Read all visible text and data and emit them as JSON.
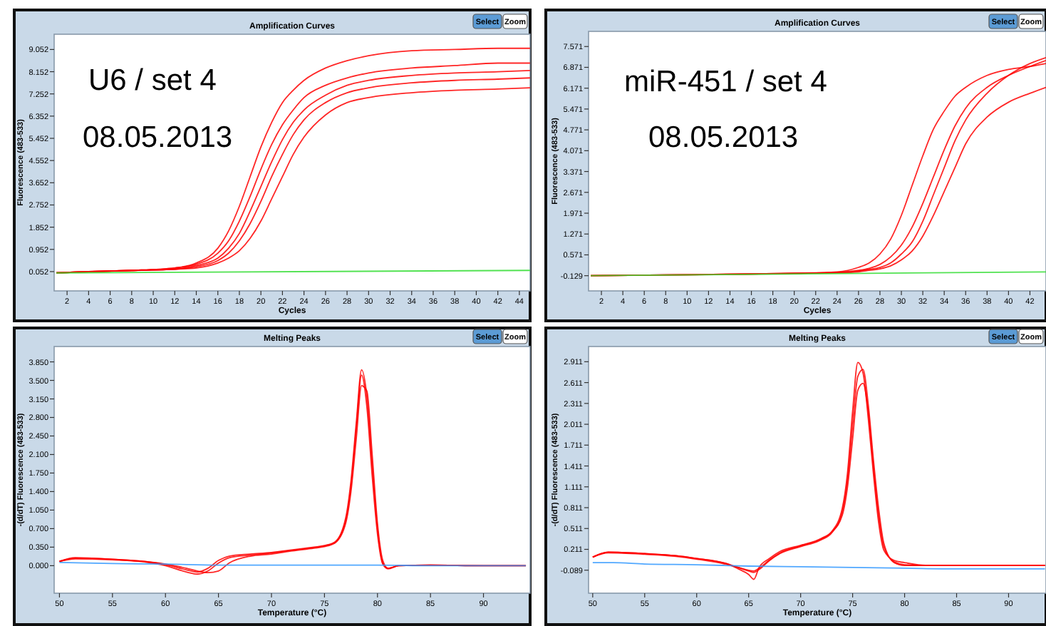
{
  "chart_data": [
    {
      "type": "line",
      "title": "Amplification Curves",
      "xlabel": "Cycles",
      "ylabel": "Fluorescence (483-533)",
      "annotations": [
        "U6  / set 4",
        "08.05.2013",
        "Select",
        "Zoom"
      ],
      "xlim": [
        0.8,
        45
      ],
      "xticks": [
        2,
        4,
        6,
        8,
        10,
        12,
        14,
        16,
        18,
        20,
        22,
        24,
        26,
        28,
        30,
        32,
        34,
        36,
        38,
        40,
        42,
        44
      ],
      "ylim": [
        -0.73,
        9.67
      ],
      "yticks": [
        {
          "value": 0.052,
          "label": "0.052"
        },
        {
          "value": 0.952,
          "label": "0.952"
        },
        {
          "value": 1.852,
          "label": "1.852"
        },
        {
          "value": 2.752,
          "label": "2.752"
        },
        {
          "value": 3.652,
          "label": "3.652"
        },
        {
          "value": 4.552,
          "label": "4.552"
        },
        {
          "value": 5.452,
          "label": "5.452"
        },
        {
          "value": 6.352,
          "label": "6.352"
        },
        {
          "value": 7.252,
          "label": "7.252"
        },
        {
          "value": 8.152,
          "label": "8.152"
        },
        {
          "value": 9.052,
          "label": "9.052"
        }
      ],
      "grid": false,
      "x": [
        1,
        4,
        8,
        12,
        14,
        16,
        17,
        18,
        19,
        20,
        21,
        22,
        23,
        24,
        26,
        28,
        30,
        34,
        38,
        42,
        45
      ],
      "series": [
        {
          "color": "#ff0000",
          "values": [
            0.0,
            0.05,
            0.1,
            0.2,
            0.4,
            1.0,
            1.7,
            2.7,
            3.9,
            5.1,
            6.1,
            6.9,
            7.4,
            7.8,
            8.3,
            8.6,
            8.8,
            9.0,
            9.05,
            9.1,
            9.1
          ]
        },
        {
          "color": "#ff0000",
          "values": [
            0.0,
            0.05,
            0.1,
            0.15,
            0.3,
            0.6,
            1.0,
            1.6,
            2.5,
            3.5,
            4.5,
            5.4,
            6.1,
            6.6,
            7.2,
            7.6,
            7.8,
            8.0,
            8.1,
            8.15,
            8.2
          ]
        },
        {
          "color": "#ff0000",
          "values": [
            0.0,
            0.05,
            0.1,
            0.15,
            0.2,
            0.4,
            0.6,
            0.9,
            1.4,
            2.1,
            3.0,
            3.9,
            4.8,
            5.5,
            6.4,
            6.9,
            7.1,
            7.3,
            7.4,
            7.45,
            7.5
          ]
        },
        {
          "color": "#ff0000",
          "values": [
            0.0,
            0.05,
            0.1,
            0.15,
            0.25,
            0.5,
            0.8,
            1.3,
            2.0,
            2.9,
            3.9,
            4.8,
            5.6,
            6.2,
            6.9,
            7.3,
            7.5,
            7.7,
            7.8,
            7.85,
            7.9
          ]
        },
        {
          "color": "#ff0000",
          "values": [
            0.0,
            0.05,
            0.1,
            0.2,
            0.35,
            0.8,
            1.3,
            2.1,
            3.1,
            4.2,
            5.2,
            6.0,
            6.6,
            7.1,
            7.6,
            7.9,
            8.1,
            8.3,
            8.4,
            8.5,
            8.5
          ]
        },
        {
          "color": "#33dd33",
          "x": [
            1,
            45
          ],
          "values": [
            0.0,
            0.1
          ]
        }
      ]
    },
    {
      "type": "line",
      "title": "Amplification Curves",
      "xlabel": "Cycles",
      "ylabel": "Fluorescence (483-533)",
      "annotations": [
        "miR-451 / set 4",
        "08.05.2013",
        "Select",
        "Zoom"
      ],
      "xlim": [
        0.8,
        43.5
      ],
      "xticks": [
        2,
        4,
        6,
        8,
        10,
        12,
        14,
        16,
        18,
        20,
        22,
        24,
        26,
        28,
        30,
        32,
        34,
        36,
        38,
        40,
        42
      ],
      "ylim": [
        -0.64,
        8.08
      ],
      "yticks": [
        {
          "value": -0.129,
          "label": "-0.129"
        },
        {
          "value": 0.571,
          "label": "0.571"
        },
        {
          "value": 1.271,
          "label": "1.271"
        },
        {
          "value": 1.971,
          "label": "1.971"
        },
        {
          "value": 2.671,
          "label": "2.671"
        },
        {
          "value": 3.371,
          "label": "3.371"
        },
        {
          "value": 4.071,
          "label": "4.071"
        },
        {
          "value": 4.771,
          "label": "4.771"
        },
        {
          "value": 5.471,
          "label": "5.471"
        },
        {
          "value": 6.171,
          "label": "6.171"
        },
        {
          "value": 6.871,
          "label": "6.871"
        },
        {
          "value": 7.571,
          "label": "7.571"
        }
      ],
      "grid": false,
      "x": [
        1,
        10,
        20,
        24,
        26,
        27,
        28,
        29,
        30,
        31,
        32,
        33,
        34,
        35,
        36,
        38,
        40,
        42,
        43.5
      ],
      "series": [
        {
          "color": "#ff0000",
          "values": [
            -0.13,
            -0.1,
            -0.05,
            0.0,
            0.15,
            0.3,
            0.6,
            1.1,
            1.9,
            2.9,
            3.9,
            4.8,
            5.4,
            5.9,
            6.2,
            6.6,
            6.8,
            6.9,
            7.0
          ]
        },
        {
          "color": "#ff0000",
          "values": [
            -0.13,
            -0.1,
            -0.05,
            -0.02,
            0.05,
            0.12,
            0.25,
            0.5,
            0.9,
            1.5,
            2.3,
            3.2,
            4.1,
            4.9,
            5.5,
            6.2,
            6.6,
            6.9,
            7.1
          ]
        },
        {
          "color": "#ff0000",
          "values": [
            -0.13,
            -0.1,
            -0.05,
            -0.03,
            0.0,
            0.05,
            0.1,
            0.2,
            0.4,
            0.7,
            1.2,
            1.9,
            2.7,
            3.5,
            4.3,
            5.2,
            5.7,
            6.0,
            6.2
          ]
        },
        {
          "color": "#ff0000",
          "values": [
            -0.13,
            -0.1,
            -0.05,
            -0.02,
            0.03,
            0.08,
            0.15,
            0.3,
            0.6,
            1.0,
            1.7,
            2.6,
            3.5,
            4.4,
            5.1,
            6.0,
            6.6,
            7.0,
            7.2
          ]
        },
        {
          "color": "#33dd33",
          "x": [
            1,
            43.5
          ],
          "values": [
            -0.13,
            0.0
          ]
        }
      ]
    },
    {
      "type": "line",
      "title": "Melting Peaks",
      "xlabel": "Temperature (°C)",
      "ylabel": "-(d/dT) Fluorescence (483-533)",
      "annotations": [
        "Select",
        "Zoom"
      ],
      "xlim": [
        49.5,
        94.4
      ],
      "xticks": [
        50,
        55,
        60,
        65,
        70,
        75,
        80,
        85,
        90
      ],
      "ylim": [
        -0.52,
        4.14
      ],
      "yticks": [
        {
          "value": 0,
          "label": "0.000"
        },
        {
          "value": 0.35,
          "label": "0.350"
        },
        {
          "value": 0.7,
          "label": "0.700"
        },
        {
          "value": 1.05,
          "label": "1.050"
        },
        {
          "value": 1.4,
          "label": "1.400"
        },
        {
          "value": 1.75,
          "label": "1.750"
        },
        {
          "value": 2.1,
          "label": "2.100"
        },
        {
          "value": 2.45,
          "label": "2.450"
        },
        {
          "value": 2.8,
          "label": "2.800"
        },
        {
          "value": 3.15,
          "label": "3.150"
        },
        {
          "value": 3.5,
          "label": "3.500"
        },
        {
          "value": 3.85,
          "label": "3.850"
        }
      ],
      "grid": false,
      "x": [
        50,
        51.5,
        55,
        58,
        60,
        62,
        63,
        64,
        65,
        66,
        68,
        70,
        72,
        74,
        75,
        76,
        77,
        77.5,
        78,
        78.5,
        79,
        79.5,
        80,
        80.5,
        81,
        82,
        85,
        90,
        94
      ],
      "series": [
        {
          "color": "#ff0000",
          "values": [
            0.08,
            0.15,
            0.12,
            0.08,
            0.02,
            -0.08,
            -0.12,
            -0.05,
            0.1,
            0.18,
            0.22,
            0.25,
            0.3,
            0.35,
            0.38,
            0.45,
            0.9,
            1.6,
            2.7,
            3.7,
            3.2,
            1.9,
            0.7,
            0.05,
            -0.05,
            0.0,
            0.01,
            0.0,
            0.0
          ]
        },
        {
          "color": "#ff0000",
          "values": [
            0.08,
            0.14,
            0.12,
            0.08,
            0.03,
            -0.05,
            -0.1,
            -0.13,
            -0.1,
            0.05,
            0.18,
            0.22,
            0.28,
            0.33,
            0.36,
            0.43,
            0.8,
            1.4,
            2.4,
            3.4,
            3.3,
            2.1,
            0.8,
            0.1,
            -0.05,
            0.0,
            0.01,
            0.0,
            0.0
          ]
        },
        {
          "color": "#ff0000",
          "values": [
            0.08,
            0.13,
            0.11,
            0.07,
            0.0,
            -0.12,
            -0.16,
            -0.1,
            0.05,
            0.15,
            0.2,
            0.24,
            0.29,
            0.34,
            0.37,
            0.44,
            0.85,
            1.5,
            2.6,
            3.6,
            3.0,
            1.7,
            0.6,
            0.03,
            -0.06,
            0.0,
            0.01,
            0.0,
            0.0
          ]
        },
        {
          "color": "#3399ff",
          "x": [
            50,
            55,
            60,
            65,
            70,
            75,
            80,
            85,
            90,
            94
          ],
          "values": [
            0.06,
            0.04,
            0.03,
            0.01,
            0.01,
            0.01,
            0.01,
            0.0,
            0.0,
            0.0
          ]
        }
      ]
    },
    {
      "type": "line",
      "title": "Melting Peaks",
      "xlabel": "Temperature (°C)",
      "ylabel": "-(d/dT) Fluorescence (483-533)",
      "annotations": [
        "Select",
        "Zoom"
      ],
      "xlim": [
        49.6,
        93.6
      ],
      "xticks": [
        50,
        55,
        60,
        65,
        70,
        75,
        80,
        85,
        90
      ],
      "ylim": [
        -0.42,
        3.13
      ],
      "yticks": [
        {
          "value": -0.089,
          "label": "-0.089"
        },
        {
          "value": 0.211,
          "label": "0.211"
        },
        {
          "value": 0.511,
          "label": "0.511"
        },
        {
          "value": 0.811,
          "label": "0.811"
        },
        {
          "value": 1.111,
          "label": "1.111"
        },
        {
          "value": 1.411,
          "label": "1.411"
        },
        {
          "value": 1.711,
          "label": "1.711"
        },
        {
          "value": 2.011,
          "label": "2.011"
        },
        {
          "value": 2.311,
          "label": "2.311"
        },
        {
          "value": 2.611,
          "label": "2.611"
        },
        {
          "value": 2.911,
          "label": "2.911"
        }
      ],
      "grid": false,
      "x": [
        50,
        51.5,
        55,
        58,
        60,
        63,
        64,
        65,
        65.5,
        66,
        67,
        68,
        70,
        72,
        73,
        74,
        74.5,
        75,
        75.5,
        76,
        76.5,
        77,
        77.5,
        78,
        79,
        80,
        82,
        85,
        90,
        93.5
      ],
      "series": [
        {
          "color": "#ff0000",
          "values": [
            0.1,
            0.17,
            0.15,
            0.12,
            0.08,
            0.0,
            -0.05,
            -0.1,
            -0.12,
            -0.08,
            0.05,
            0.15,
            0.25,
            0.35,
            0.45,
            0.75,
            1.2,
            2.0,
            2.7,
            2.8,
            2.3,
            1.5,
            0.8,
            0.3,
            0.02,
            -0.02,
            -0.02,
            -0.02,
            -0.02,
            -0.02
          ]
        },
        {
          "color": "#ff0000",
          "values": [
            0.1,
            0.16,
            0.14,
            0.11,
            0.07,
            -0.01,
            -0.05,
            -0.09,
            -0.1,
            -0.06,
            0.06,
            0.16,
            0.26,
            0.36,
            0.46,
            0.7,
            1.1,
            1.8,
            2.5,
            2.6,
            2.2,
            1.4,
            0.7,
            0.25,
            0.03,
            -0.01,
            -0.02,
            -0.02,
            -0.02,
            -0.02
          ]
        },
        {
          "color": "#ff0000",
          "values": [
            0.1,
            0.17,
            0.15,
            0.12,
            0.08,
            0.0,
            -0.07,
            -0.15,
            -0.22,
            -0.05,
            0.08,
            0.18,
            0.27,
            0.37,
            0.47,
            0.8,
            1.3,
            2.2,
            2.9,
            2.75,
            2.1,
            1.3,
            0.6,
            0.2,
            0.05,
            0.02,
            -0.02,
            -0.02,
            -0.02,
            -0.02
          ]
        },
        {
          "color": "#3399ff",
          "x": [
            50,
            52,
            55,
            60,
            65,
            70,
            75,
            80,
            85,
            90,
            93.5
          ],
          "values": [
            0.02,
            0.02,
            0.0,
            -0.01,
            -0.03,
            -0.04,
            -0.05,
            -0.06,
            -0.07,
            -0.07,
            -0.07
          ]
        }
      ]
    }
  ]
}
